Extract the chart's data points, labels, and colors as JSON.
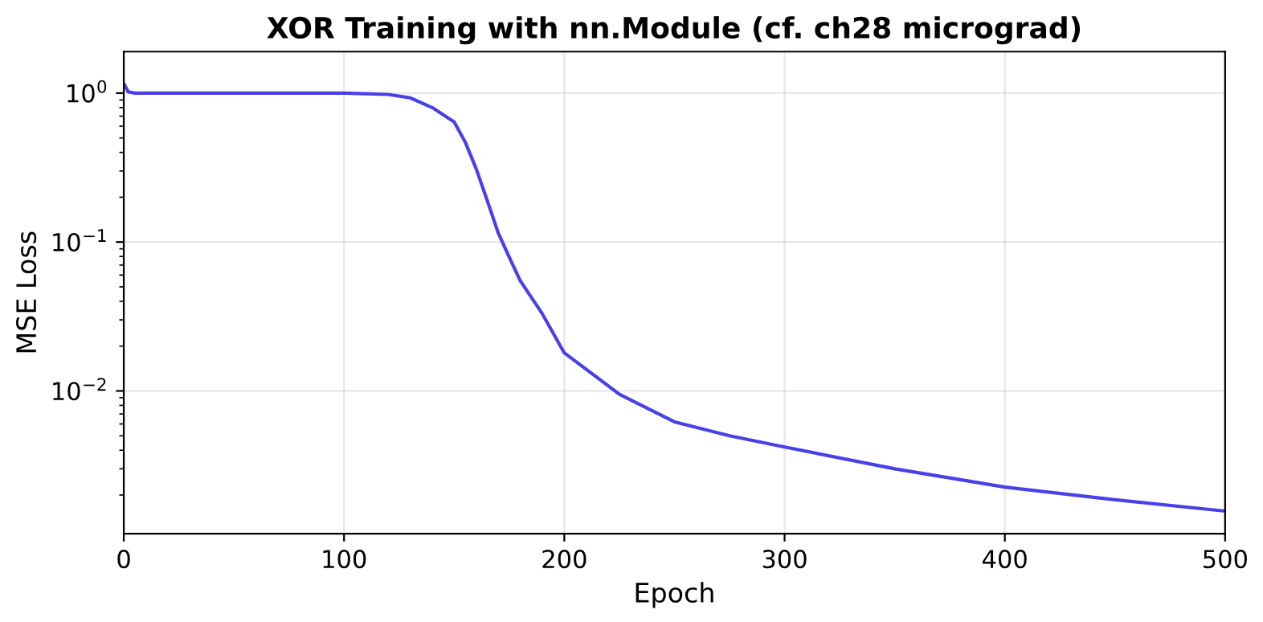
{
  "chart_data": {
    "type": "line",
    "title": "XOR Training with nn.Module (cf. ch28 micrograd)",
    "xlabel": "Epoch",
    "ylabel": "MSE Loss",
    "x": [
      0,
      2,
      5,
      20,
      60,
      100,
      120,
      130,
      140,
      150,
      155,
      160,
      165,
      170,
      175,
      180,
      190,
      200,
      225,
      250,
      275,
      300,
      350,
      400,
      450,
      500
    ],
    "series": [
      {
        "color": "#4a40e8",
        "values": [
          1.16,
          1.02,
          1.0,
          1.0,
          1.0,
          1.0,
          0.98,
          0.93,
          0.8,
          0.64,
          0.47,
          0.31,
          0.19,
          0.115,
          0.079,
          0.055,
          0.033,
          0.018,
          0.0095,
          0.0062,
          0.005,
          0.0042,
          0.003,
          0.00226,
          0.00186,
          0.00156
        ]
      }
    ],
    "log": "y",
    "xlim": [
      0,
      500
    ],
    "xticks": [
      0,
      100,
      200,
      300,
      400,
      500
    ],
    "ylim": [
      0.0011,
      1.9
    ],
    "yticks": [
      {
        "value": 0.01,
        "label": "10$^{−2}$"
      },
      {
        "value": 0.1,
        "label": "10$^{−1}$"
      },
      {
        "value": 1,
        "label": "10$^{0}$"
      }
    ],
    "grid": true,
    "legend": false,
    "marker": "none",
    "line_style": "solid"
  }
}
